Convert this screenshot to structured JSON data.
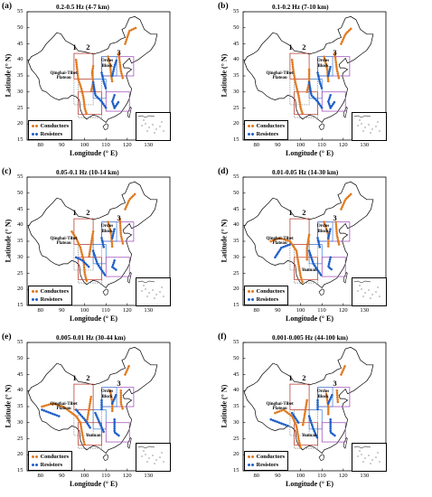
{
  "panels": [
    {
      "label": "(a)",
      "title": "0.2-0.5 Hz (4-7 km)"
    },
    {
      "label": "(b)",
      "title": "0.1-0.2 Hz (7-10 km)"
    },
    {
      "label": "(c)",
      "title": "0.05-0.1 Hz (10-14 km)"
    },
    {
      "label": "(d)",
      "title": "0.01-0.05 Hz (14-30 km)"
    },
    {
      "label": "(e)",
      "title": "0.005-0.01 Hz (30-44 km)"
    },
    {
      "label": "(f)",
      "title": "0.001-0.005 Hz (44-100 km)"
    }
  ],
  "axes": {
    "ylabel": "Latitude (° N)",
    "xlabel": "Longitude (° E)",
    "yticks": [
      "55",
      "50",
      "45",
      "40",
      "35",
      "30",
      "25",
      "20",
      "15"
    ],
    "xticks": [
      "80",
      "90",
      "100",
      "110",
      "120",
      "130"
    ]
  },
  "legend": {
    "conductors": "Conductors",
    "resistors": "Resistors"
  },
  "colors": {
    "conductor": "#e07a1f",
    "resistor": "#1f5fc8",
    "box_red": "#c0392b",
    "box_purple": "#9b3fb5",
    "box_blue": "#3b7bd4",
    "box_gray": "#888888"
  },
  "region_labels": {
    "qinghai": "Qinghai-Tibet Plateau",
    "ordos": "Ordos Block",
    "yunnan": "Yunnan"
  },
  "zone_numbers": [
    "1",
    "2",
    "3"
  ]
}
